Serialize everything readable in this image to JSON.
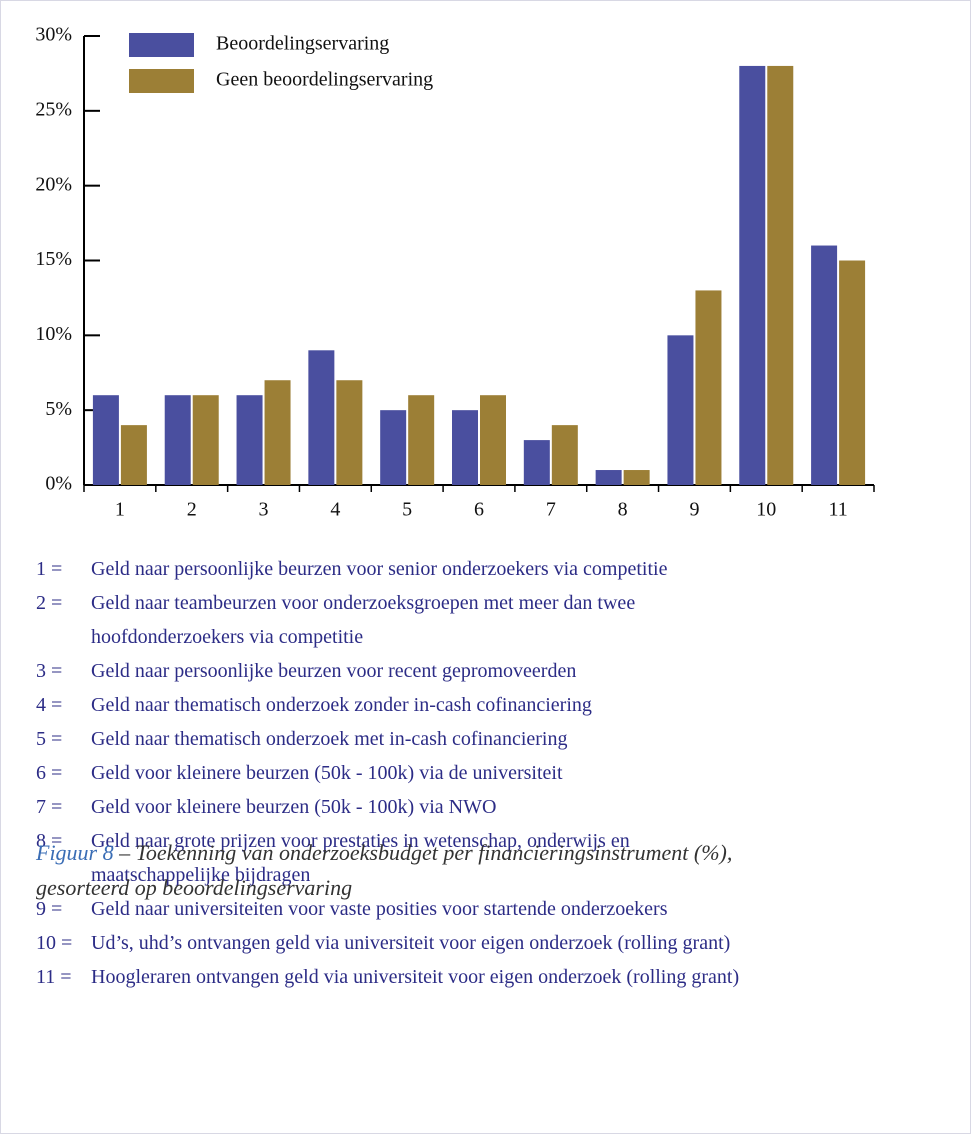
{
  "chart_data": {
    "type": "bar",
    "categories": [
      "1",
      "2",
      "3",
      "4",
      "5",
      "6",
      "7",
      "8",
      "9",
      "10",
      "11"
    ],
    "series": [
      {
        "name": "Beoordelingservaring",
        "color": "#4a4f9f",
        "values": [
          6,
          6,
          6,
          9,
          5,
          5,
          3,
          1,
          10,
          28,
          16
        ]
      },
      {
        "name": "Geen beoordelingservaring",
        "color": "#9c7f36",
        "values": [
          4,
          6,
          7,
          7,
          6,
          6,
          4,
          1,
          13,
          28,
          15
        ]
      }
    ],
    "ylim": [
      0,
      30
    ],
    "yticks": [
      {
        "value": 0,
        "label": "0%"
      },
      {
        "value": 5,
        "label": "5%"
      },
      {
        "value": 10,
        "label": "10%"
      },
      {
        "value": 15,
        "label": "15%"
      },
      {
        "value": 20,
        "label": "20%"
      },
      {
        "value": 25,
        "label": "25%"
      },
      {
        "value": 30,
        "label": "30%"
      }
    ],
    "grid": false,
    "legend": "top-left"
  },
  "notes": [
    {
      "key": "1 =",
      "lines": [
        "Geld naar persoonlijke beurzen voor senior onderzoekers via competitie"
      ]
    },
    {
      "key": "2 =",
      "lines": [
        "Geld naar teambeurzen voor onderzoeksgroepen met meer dan twee",
        "hoofdonderzoekers via competitie"
      ]
    },
    {
      "key": "3 =",
      "lines": [
        "Geld naar persoonlijke beurzen voor recent gepromoveerden"
      ]
    },
    {
      "key": "4 =",
      "lines": [
        "Geld naar thematisch onderzoek zonder in-cash cofinanciering"
      ]
    },
    {
      "key": "5 =",
      "lines": [
        "Geld naar thematisch onderzoek met in-cash cofinanciering"
      ]
    },
    {
      "key": "6 =",
      "lines": [
        "Geld voor kleinere beurzen (50k - 100k) via de universiteit"
      ]
    },
    {
      "key": "7 =",
      "lines": [
        "Geld voor kleinere beurzen (50k - 100k) via NWO"
      ]
    },
    {
      "key": "8 =",
      "lines": [
        "Geld naar grote prijzen voor prestaties in wetenschap, onderwijs en",
        "maatschappelijke bijdragen"
      ]
    },
    {
      "key": "9 =",
      "lines": [
        "Geld naar universiteiten voor vaste posities voor startende onderzoekers"
      ]
    },
    {
      "key": "10 =",
      "lines": [
        "Ud’s, uhd’s ontvangen geld via universiteit voor eigen onderzoek (rolling grant)"
      ]
    },
    {
      "key": "11 =",
      "lines": [
        "Hoogleraren ontvangen geld via universiteit voor eigen onderzoek (rolling grant)"
      ]
    }
  ],
  "caption": {
    "label": "Figuur 8",
    "lines": [
      "– Toekenning van onderzoeksbudget per financieringsinstrument (%),",
      "gesorteerd op beoordelingservaring"
    ]
  }
}
